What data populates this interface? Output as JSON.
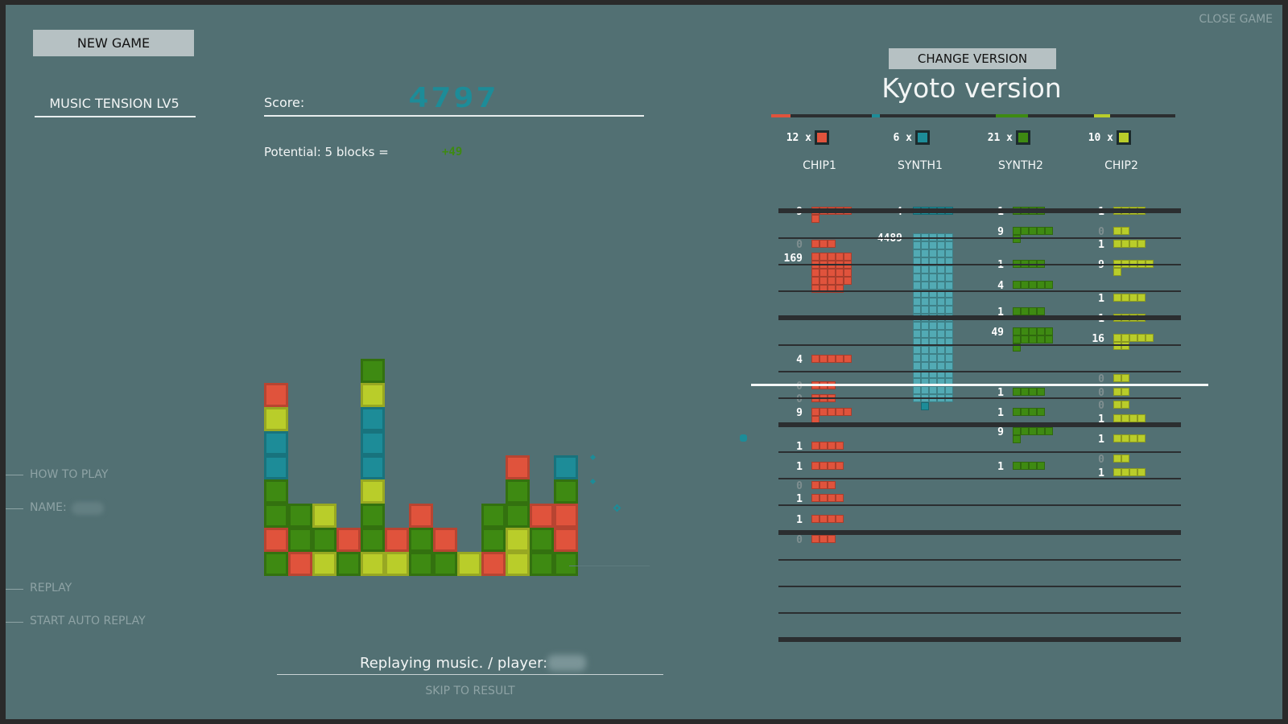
{
  "buttons": {
    "new_game": "NEW GAME",
    "change_version": "CHANGE VERSION",
    "close_game": "CLOSE GAME",
    "skip": "SKIP TO RESULT"
  },
  "left_menu": {
    "music_tension": "MUSIC TENSION LV5",
    "how_to_play": "HOW TO PLAY",
    "name_label": "NAME:",
    "replay": "REPLAY",
    "start_auto_replay": "START AUTO REPLAY"
  },
  "score": {
    "label": "Score:",
    "value": "4797",
    "potential_label": "Potential: 5 blocks =",
    "potential_value": "+49"
  },
  "status": {
    "replaying": "Replaying music. / player:"
  },
  "version": {
    "title": "Kyoto version"
  },
  "colors": {
    "red": "#e0533c",
    "teal": "#1d8c98",
    "green": "#3e8a12",
    "lime": "#b9cd2a",
    "background": "#527073"
  },
  "instruments": [
    {
      "name": "CHIP1",
      "count": "12",
      "color": "#e0533c"
    },
    {
      "name": "SYNTH1",
      "count": "6",
      "color": "#1d8c98"
    },
    {
      "name": "SYNTH2",
      "count": "21",
      "color": "#3e8a12"
    },
    {
      "name": "CHIP2",
      "count": "10",
      "color": "#b9cd2a"
    }
  ],
  "playfield": {
    "columns": [
      [
        "green",
        "red",
        "green",
        "green",
        "teal",
        "teal",
        "lime",
        "red"
      ],
      [
        "red",
        "green",
        "green"
      ],
      [
        "lime",
        "green",
        "lime"
      ],
      [
        "green",
        "red"
      ],
      [
        "lime",
        "green",
        "green",
        "lime",
        "teal",
        "teal",
        "teal",
        "lime",
        "green"
      ],
      [
        "lime",
        "red"
      ],
      [
        "green",
        "green",
        "red"
      ],
      [
        "green",
        "red"
      ],
      [
        "lime"
      ],
      [
        "red",
        "green",
        "green"
      ],
      [
        "lime",
        "lime",
        "green",
        "green",
        "red"
      ],
      [
        "green",
        "green",
        "red"
      ],
      [
        "green",
        "red",
        "red",
        "green",
        "teal"
      ]
    ]
  },
  "score_numbers": {
    "chip1": [
      "9",
      "0",
      "169",
      "4",
      "0",
      "0",
      "9",
      "1",
      "1",
      "0",
      "1",
      "1",
      "0"
    ],
    "synth1": [
      "4",
      "4489"
    ],
    "synth2": [
      "1",
      "9",
      "1",
      "4",
      "1",
      "49",
      "1",
      "1",
      "9",
      "1"
    ],
    "chip2": [
      "1",
      "0",
      "1",
      "9",
      "1",
      "1",
      "16",
      "0",
      "0",
      "0",
      "1",
      "1",
      "0",
      "1"
    ]
  }
}
